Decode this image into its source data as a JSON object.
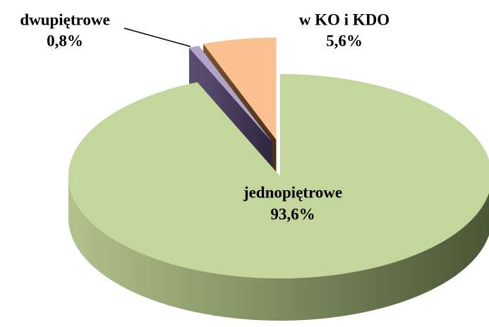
{
  "chart_data": {
    "type": "pie",
    "categories": [
      "jednopiętrowe",
      "dwupiętrowe",
      "w KO i KDO"
    ],
    "values": [
      93.6,
      0.8,
      5.6
    ],
    "value_labels": [
      "93,6%",
      "0,8%",
      "5,6%"
    ],
    "colors": [
      "#c3d69b",
      "#b3a2c7",
      "#fac090"
    ]
  }
}
